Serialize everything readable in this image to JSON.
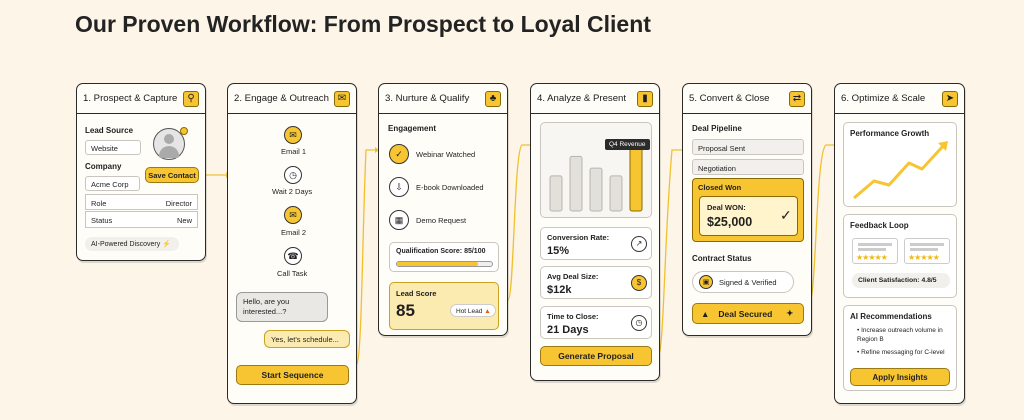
{
  "title": "Our Proven Workflow: From Prospect to Loyal Client",
  "colors": {
    "accent": "#f7c531",
    "background": "#fcf5e8",
    "border": "#2a2a2a"
  },
  "card1": {
    "title": "1. Prospect & Capture",
    "icon": "search-icon",
    "lead_source_label": "Lead Source",
    "lead_source_value": "Website",
    "company_label": "Company",
    "company_value": "Acme Corp",
    "role_label": "Role",
    "role_value": "Director",
    "status_label": "Status",
    "status_value": "New",
    "save_button": "Save Contact",
    "ai_badge": "AI-Powered Discovery"
  },
  "card2": {
    "title": "2. Engage & Outreach",
    "icon": "chat-icon",
    "steps": [
      "Email 1",
      "Wait 2 Days",
      "Email 2",
      "Call Task"
    ],
    "msg_in": "Hello, are you interested...?",
    "msg_out": "Yes, let's schedule...",
    "button": "Start Sequence"
  },
  "card3": {
    "title": "3. Nurture & Qualify",
    "icon": "sprout-icon",
    "engagement_label": "Engagement",
    "items": [
      "Webinar Watched",
      "E-book Downloaded",
      "Demo Request"
    ],
    "qualification": "Qualification Score: 85/100",
    "qualification_progress": 0.85,
    "lead_score_label": "Lead Score",
    "lead_score_value": "85",
    "hot_lead": "Hot Lead"
  },
  "card4": {
    "title": "4. Analyze & Present",
    "icon": "bar-chart-icon",
    "tooltip": "Q4 Revenue",
    "bars": [
      0.45,
      0.7,
      0.55,
      0.45,
      0.85
    ],
    "conversion_label": "Conversion Rate:",
    "conversion_value": "15%",
    "deal_size_label": "Avg Deal Size:",
    "deal_size_value": "$12k",
    "time_label": "Time to Close:",
    "time_value": "21 Days",
    "button": "Generate Proposal"
  },
  "card5": {
    "title": "5. Convert & Close",
    "icon": "handshake-icon",
    "pipeline_label": "Deal Pipeline",
    "stages": [
      "Proposal Sent",
      "Negotiation",
      "Closed Won"
    ],
    "deal_won_label": "Deal WON:",
    "deal_won_value": "$25,000",
    "contract_label": "Contract Status",
    "contract_value": "Signed & Verified",
    "button": "Deal Secured"
  },
  "card6": {
    "title": "6. Optimize & Scale",
    "icon": "rocket-icon",
    "growth_label": "Performance Growth",
    "feedback_label": "Feedback Loop",
    "satisfaction": "Client Satisfaction: 4.8/5",
    "ai_rec_label": "AI Recommendations",
    "recs": [
      "Increase outreach volume in Region B",
      "Refine messaging for C-level"
    ],
    "button": "Apply Insights"
  }
}
